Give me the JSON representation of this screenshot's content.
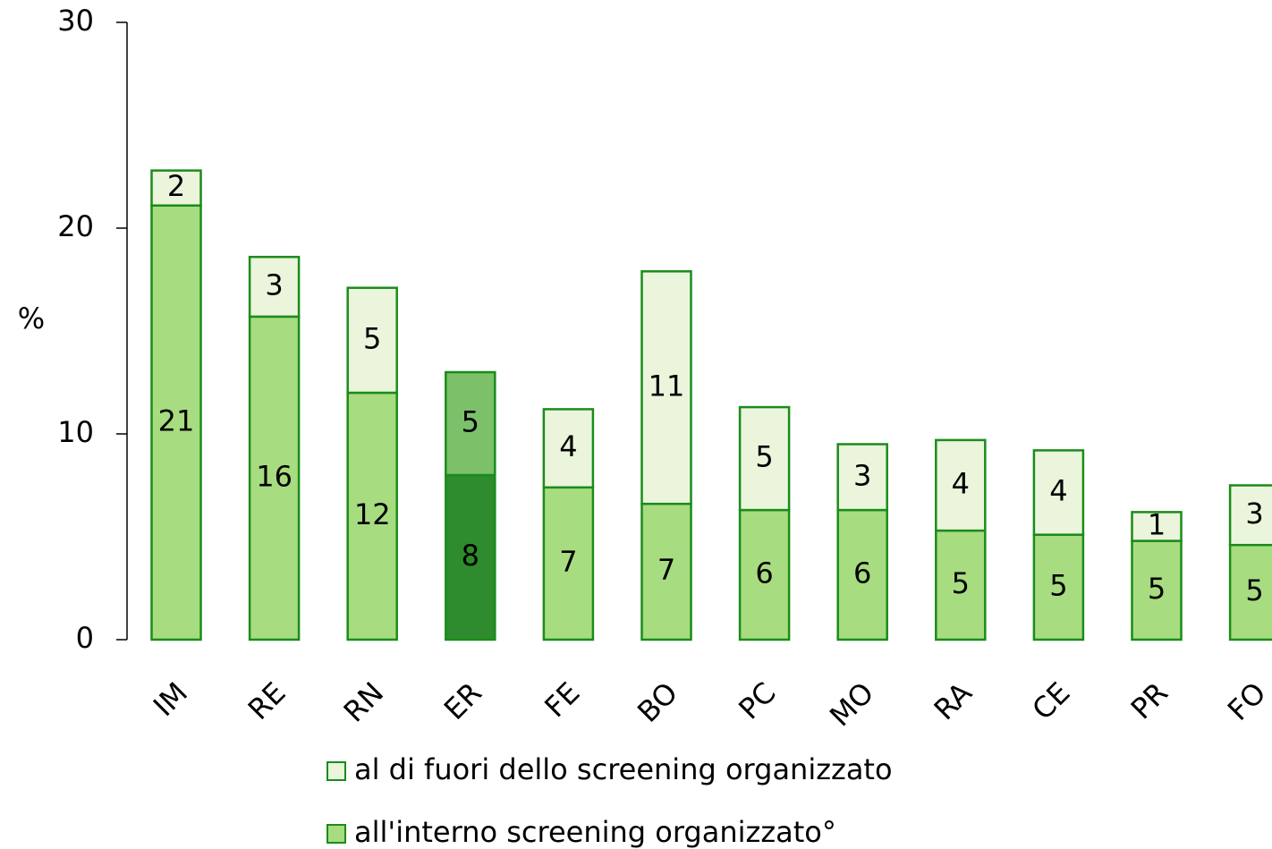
{
  "chart_data": {
    "type": "stacked_bar",
    "y_label": "%",
    "categories": [
      "IM",
      "RE",
      "RN",
      "ER",
      "FE",
      "BO",
      "PC",
      "MO",
      "RA",
      "CE",
      "PR",
      "FO"
    ],
    "series": [
      {
        "name": "all'interno screening organizzato°",
        "color": "#a8dc80",
        "colors": [
          "#a8dc80",
          "#a8dc80",
          "#a8dc80",
          "#2e8b2e",
          "#a8dc80",
          "#a8dc80",
          "#a8dc80",
          "#a8dc80",
          "#a8dc80",
          "#a8dc80",
          "#a8dc80",
          "#a8dc80"
        ],
        "label_colors": [
          "#000000",
          "#000000",
          "#000000",
          "#ffffff",
          "#ffffff",
          "#000000",
          "#000000",
          "#000000",
          "#000000",
          "#000000",
          "#000000",
          "#000000"
        ],
        "values": [
          21.1,
          15.7,
          12.0,
          8.0,
          7.4,
          6.6,
          6.3,
          6.3,
          5.3,
          5.1,
          4.8,
          4.6
        ],
        "value_labels": [
          "21",
          "16",
          "12",
          "8",
          "7",
          "7",
          "6",
          "6",
          "5",
          "5",
          "5",
          "5"
        ]
      },
      {
        "name": "al di fuori dello screening organizzato",
        "color": "#eaf5dc",
        "colors": [
          "#eaf5dc",
          "#eaf5dc",
          "#eaf5dc",
          "#7cc06a",
          "#eaf5dc",
          "#eaf5dc",
          "#eaf5dc",
          "#eaf5dc",
          "#eaf5dc",
          "#eaf5dc",
          "#eaf5dc",
          "#eaf5dc"
        ],
        "label_colors": [
          "#000000",
          "#000000",
          "#000000",
          "#000000",
          "#000000",
          "#000000",
          "#000000",
          "#000000",
          "#000000",
          "#000000",
          "#000000",
          "#000000"
        ],
        "values": [
          1.7,
          2.9,
          5.1,
          5.0,
          3.8,
          11.3,
          5.0,
          3.2,
          4.4,
          4.1,
          1.4,
          2.9
        ],
        "value_labels": [
          "2",
          "3",
          "5",
          "5",
          "4",
          "11",
          "5",
          "3",
          "4",
          "4",
          "1",
          "3"
        ]
      }
    ],
    "border_color": "#1a8c1a",
    "ylim": [
      0,
      30
    ],
    "yticks": [
      0,
      10,
      20,
      30
    ],
    "grid": false
  }
}
